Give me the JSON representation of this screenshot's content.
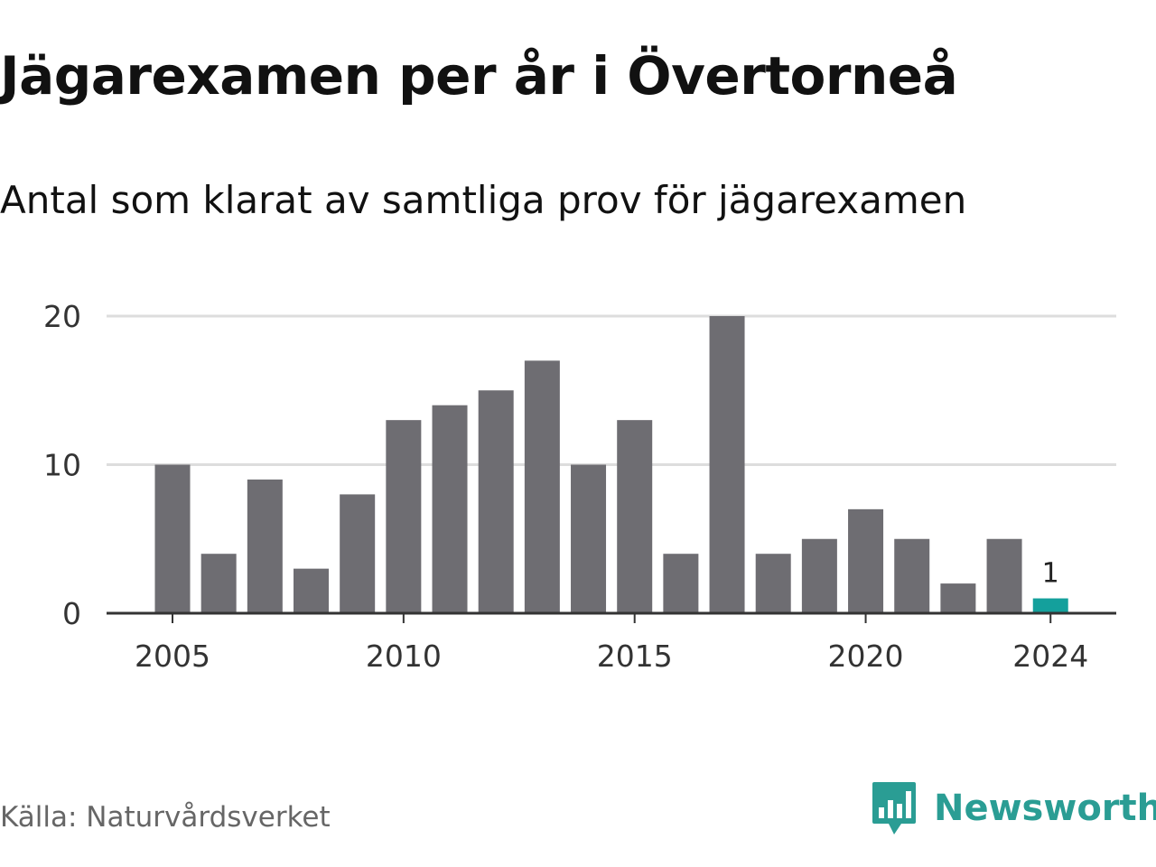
{
  "header": {
    "title": "Jägarexamen per år i Övertorneå",
    "subtitle": "Antal som klarat av samtliga prov för jägarexamen"
  },
  "footer": {
    "source": "Källa: Naturvårdsverket",
    "brand": "Newsworthy"
  },
  "colors": {
    "bar": "#6e6d72",
    "highlight": "#14a09c",
    "grid": "#dddddd",
    "axis": "#333333",
    "text": "#333333",
    "brand": "#2a9d94"
  },
  "chart_data": {
    "type": "bar",
    "title": "Jägarexamen per år i Övertorneå",
    "subtitle": "Antal som klarat av samtliga prov för jägarexamen",
    "xlabel": "",
    "ylabel": "",
    "categories": [
      2005,
      2006,
      2007,
      2008,
      2009,
      2010,
      2011,
      2012,
      2013,
      2014,
      2015,
      2016,
      2017,
      2018,
      2019,
      2020,
      2021,
      2022,
      2023,
      2024
    ],
    "values": [
      10,
      4,
      9,
      3,
      8,
      13,
      14,
      15,
      17,
      10,
      13,
      4,
      20,
      4,
      5,
      7,
      5,
      2,
      5,
      1
    ],
    "ylim": [
      0,
      20
    ],
    "y_ticks": [
      0,
      10,
      20
    ],
    "x_ticks": [
      2005,
      2010,
      2015,
      2020,
      2024
    ],
    "highlight_category": 2024,
    "data_labels": [
      {
        "category": 2024,
        "text": "1"
      }
    ],
    "grid": true,
    "legend": "none"
  }
}
